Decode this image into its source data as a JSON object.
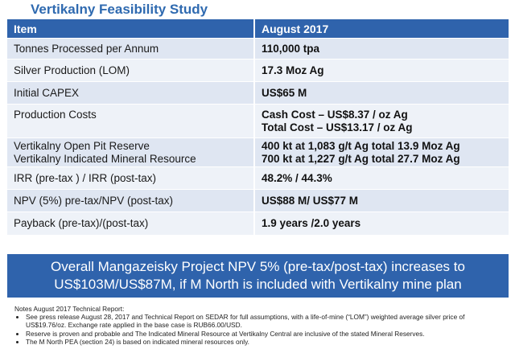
{
  "title": "Vertikalny Feasibility Study",
  "table": {
    "headers": [
      "Item",
      "August 2017"
    ],
    "rows": [
      {
        "item": [
          "Tonnes Processed per Annum"
        ],
        "value": [
          "110,000 tpa"
        ]
      },
      {
        "item": [
          "Silver Production (LOM)"
        ],
        "value": [
          "17.3 Moz Ag"
        ]
      },
      {
        "item": [
          "Initial CAPEX"
        ],
        "value": [
          "US$65 M"
        ]
      },
      {
        "item": [
          "Production Costs"
        ],
        "value": [
          "Cash Cost – US$8.37 / oz Ag",
          "Total Cost – US$13.17 / oz Ag"
        ]
      },
      {
        "item": [
          "Vertikalny Open Pit Reserve",
          "Vertikalny Indicated Mineral Resource"
        ],
        "value": [
          "400 kt at 1,083 g/t Ag total 13.9 Moz Ag",
          "700 kt at 1,227 g/t Ag total 27.7 Moz Ag"
        ]
      },
      {
        "item": [
          "IRR (pre-tax ) / IRR (post-tax)"
        ],
        "value": [
          "48.2% / 44.3%"
        ]
      },
      {
        "item": [
          "NPV (5%) pre-tax/NPV (post-tax)"
        ],
        "value": [
          "US$88 M/ US$77 M"
        ]
      },
      {
        "item": [
          "Payback (pre-tax)/(post-tax)"
        ],
        "value": [
          "1.9 years /2.0 years"
        ]
      }
    ]
  },
  "banner": {
    "line1": "Overall Mangazeisky Project NPV 5% (pre-tax/post-tax) increases to",
    "line2": "US$103M/US$87M, if M North is included with Vertikalny mine plan"
  },
  "notes": {
    "heading": "Notes August 2017 Technical Report:",
    "items": [
      "See press release August 28, 2017 and Technical Report on SEDAR for full assumptions, with a life-of-mine (“LOM”) weighted average silver price of US$19.76/oz.  Exchange rate applied in the base case is RUB66.00/USD.",
      "Reserve is proven and probable and The Indicated Mineral Resource at Vertikalny Central are inclusive of the stated Mineral Reserves.",
      "The M North PEA (section 24) is based on indicated mineral resources only."
    ]
  }
}
